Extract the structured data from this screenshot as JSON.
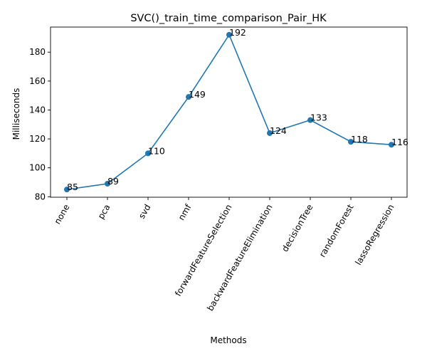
{
  "chart_data": {
    "type": "line",
    "title": "SVC()_train_time_comparison_Pair_HK",
    "xlabel": "Methods",
    "ylabel": "Milliseconds",
    "categories": [
      "none",
      "pca",
      "svd",
      "nmf",
      "forwardFeatureSelection",
      "backwardFeatureElimination",
      "decisionTree",
      "randomForest",
      "lassoRegression"
    ],
    "values": [
      85,
      89,
      110,
      149,
      192,
      124,
      133,
      118,
      116
    ],
    "data_labels": [
      "85",
      "89",
      "110",
      "149",
      "192",
      "124",
      "133",
      "118",
      "116"
    ],
    "ylim": [
      79.65,
      197.35
    ],
    "yticks": [
      80,
      100,
      120,
      140,
      160,
      180
    ],
    "ytick_labels": [
      "80",
      "100",
      "120",
      "140",
      "160",
      "180"
    ],
    "xtick_rotation": 60,
    "grid": false,
    "legend": "none",
    "colors": {
      "series": "#1f77b4"
    }
  }
}
